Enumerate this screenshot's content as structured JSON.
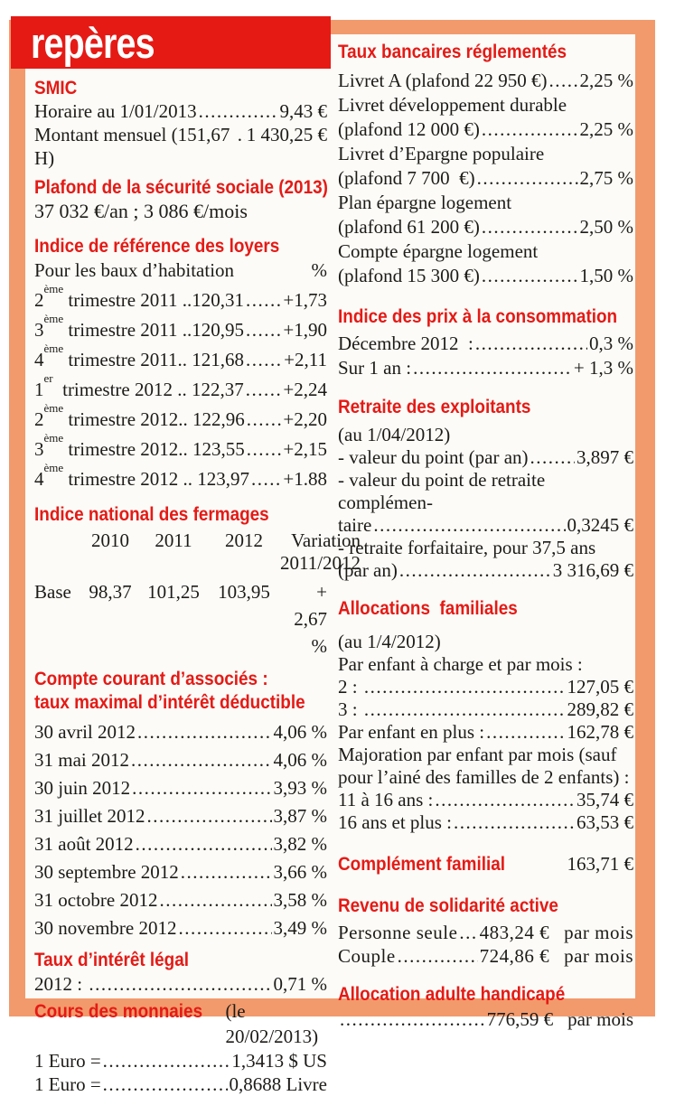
{
  "masthead": {
    "title": "repères"
  },
  "colors": {
    "red": "#e51a15",
    "orange": "#f29a6c",
    "ink": "#1d1b18",
    "paper": "#fcfbf8"
  },
  "left": {
    "smic": {
      "heading": "SMIC",
      "rows": [
        {
          "label": "Horaire au 1/01/2013",
          "value": "9,43 €"
        },
        {
          "label": "Montant mensuel (151,67 H)",
          "value": "1 430,25 €"
        }
      ]
    },
    "plafond": {
      "heading": "Plafond de la sécurité sociale (2013)",
      "text": "37 032 €/an ; 3 086 €/mois"
    },
    "loyers": {
      "heading": "Indice de référence des loyers",
      "subhead_label": "Pour les baux d’habitation",
      "subhead_value": "%",
      "rows": [
        {
          "pre": "2",
          "sup": "ème",
          "label": " trimestre 2011 ..120,31",
          "value": "+1,73"
        },
        {
          "pre": "3",
          "sup": "ème",
          "label": " trimestre 2011 ..120,95",
          "value": "+1,90"
        },
        {
          "pre": "4",
          "sup": "ème",
          "label": " trimestre 2011.. 121,68",
          "value": "+2,11"
        },
        {
          "pre": "1",
          "sup": "er",
          "label": "  trimestre 2012 .. 122,37",
          "value": "+2,24"
        },
        {
          "pre": "2",
          "sup": "ème",
          "label": " trimestre 2012.. 122,96",
          "value": "+2,20"
        },
        {
          "pre": "3",
          "sup": "ème",
          "label": " trimestre 2012.. 123,55",
          "value": "+2,15"
        },
        {
          "pre": "4",
          "sup": "ème",
          "label": " trimestre 2012 .. 123,97",
          "value": "+1.88"
        }
      ]
    },
    "fermages": {
      "heading": "Indice national des fermages",
      "years": [
        "2010",
        "2011",
        "2012"
      ],
      "variation_label_1": "Variation",
      "variation_label_2": "2011/2012",
      "row_label": "Base",
      "values": [
        "98,37",
        "101,25",
        "103,95"
      ],
      "variation_value": "+ 2,67 %"
    },
    "compte_courant": {
      "heading_line1": "Compte courant d’associés :",
      "heading_line2": "taux maximal d’intérêt déductible",
      "rows": [
        {
          "label": "30 avril 2012",
          "value": "4,06 %"
        },
        {
          "label": "31 mai 2012",
          "value": "4,06 %"
        },
        {
          "label": "30 juin 2012",
          "value": "3,93 %"
        },
        {
          "label": "31 juillet 2012",
          "value": "3,87 %"
        },
        {
          "label": "31 août 2012",
          "value": "3,82 %"
        },
        {
          "label": "30 septembre 2012",
          "value": "3,66 %"
        },
        {
          "label": "31 octobre 2012",
          "value": "3,58 %"
        },
        {
          "label": "30 novembre 2012",
          "value": "3,49 %"
        }
      ]
    },
    "taux_legal": {
      "heading": "Taux d’intérêt légal",
      "rows": [
        {
          "label": "2012 : ",
          "value": "0,71 %"
        }
      ]
    },
    "monnaies": {
      "heading": "Cours des monnaies",
      "note": "(le 20/02/2013)",
      "rows": [
        {
          "label": "1 Euro =",
          "value": "1,3413 $ US"
        },
        {
          "label": "1 Euro =",
          "value": "0,8688 Livre"
        }
      ]
    }
  },
  "right": {
    "taux_bancaires": {
      "heading": "Taux bancaires réglementés",
      "rows": [
        {
          "label": "Livret A (plafond 22 950 €)",
          "value": "2,25 %"
        },
        {
          "label": "Livret développement durable"
        },
        {
          "label": "(plafond 12 000 €)",
          "value": "2,25 %"
        },
        {
          "label": "Livret d’Epargne populaire"
        },
        {
          "label": "(plafond 7 700  €)",
          "value": "2,75 %"
        },
        {
          "label": "Plan épargne logement"
        },
        {
          "label": "(plafond 61 200 €)",
          "value": "2,50 %"
        },
        {
          "label": "Compte épargne logement"
        },
        {
          "label": "(plafond 15 300 €)",
          "value": "1,50 %"
        }
      ]
    },
    "prix_conso": {
      "heading": "Indice des prix à la consommation",
      "rows": [
        {
          "label": "Décembre 2012  :",
          "value": "0,3 %"
        },
        {
          "label": "Sur 1 an :",
          "value": "+ 1,3 %"
        }
      ]
    },
    "retraite": {
      "heading": "Retraite des exploitants",
      "rows": [
        {
          "label": "(au 1/04/2012)"
        },
        {
          "label": "- valeur du point (par an)",
          "value": "3,897 €"
        },
        {
          "label": "- valeur du point de retraite complémen-"
        },
        {
          "label": "taire",
          "value": "0,3245 €"
        },
        {
          "label": "- retraite forfaitaire, pour 37,5 ans"
        },
        {
          "label": "(par an)",
          "value": "3 316,69 €"
        }
      ]
    },
    "allocations": {
      "heading": "Allocations familiales",
      "rows": [
        {
          "label": "(au 1/4/2012)"
        },
        {
          "label": "Par enfant à charge et par mois :"
        },
        {
          "label": "2 : ",
          "value": "127,05 €"
        },
        {
          "label": "3 : ",
          "value": "289,82 €"
        },
        {
          "label": "Par enfant en plus :",
          "value": "162,78 €"
        },
        {
          "label": "Majoration par enfant par mois (sauf",
          "cls": "justify"
        },
        {
          "label": "pour l’ainé des familles de 2 enfants) :"
        },
        {
          "label": "11 à 16 ans :",
          "value": "35,74 €"
        },
        {
          "label": "16 ans et plus :",
          "value": "63,53 €"
        }
      ]
    },
    "complement": {
      "heading": "Complément familial",
      "value": "163,71 €"
    },
    "rsa": {
      "heading": "Revenu de solidarité active",
      "rows": [
        {
          "label": "Personne seule",
          "value": "483,24 €",
          "suffix": "par mois"
        },
        {
          "label": "Couple",
          "value": "724,86 €",
          "suffix": "par mois"
        }
      ]
    },
    "aah": {
      "heading": "Allocation adulte handicapé",
      "rows": [
        {
          "label": "",
          "value": "776,59 €",
          "suffix": "par mois"
        }
      ]
    }
  }
}
